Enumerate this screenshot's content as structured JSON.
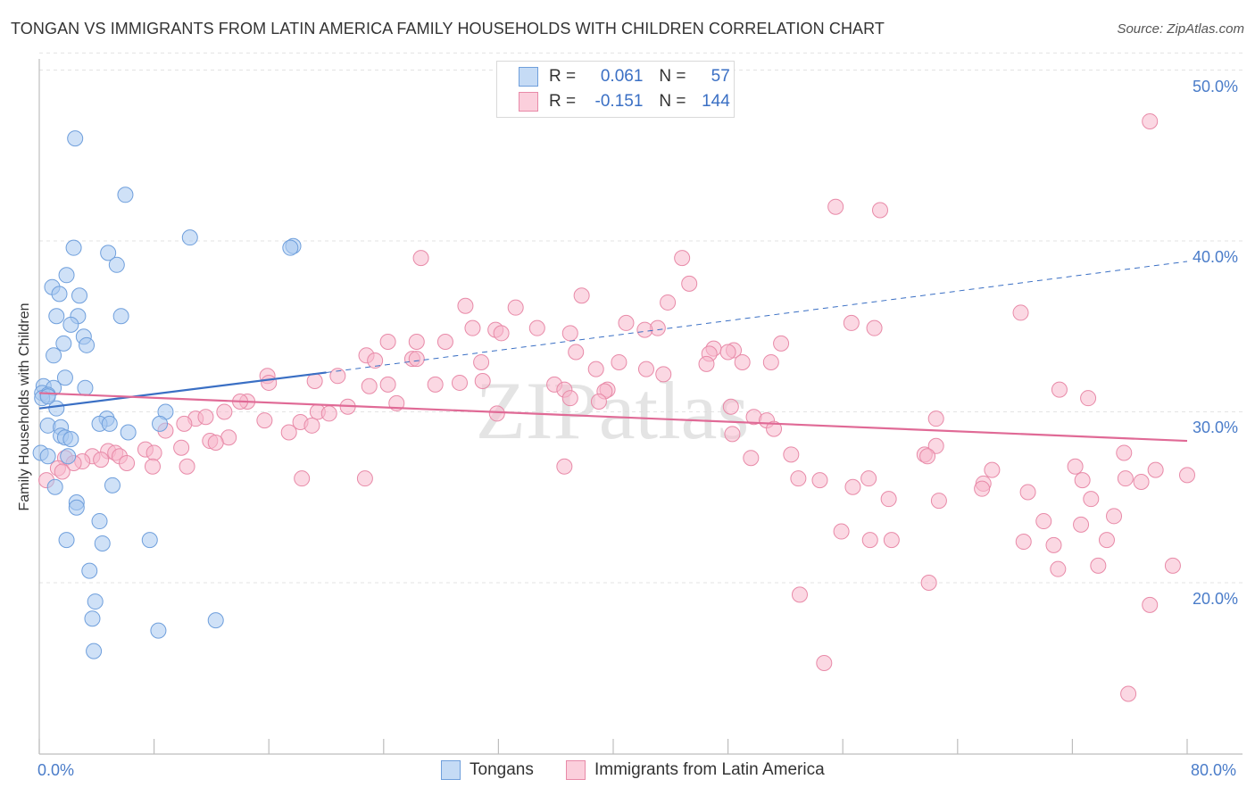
{
  "title": "TONGAN VS IMMIGRANTS FROM LATIN AMERICA FAMILY HOUSEHOLDS WITH CHILDREN CORRELATION CHART",
  "source": "Source: ZipAtlas.com",
  "watermark": "ZIPatlas",
  "legend": {
    "rows": [
      {
        "r_label": "R =",
        "r_value": "0.061",
        "n_label": "N =",
        "n_value": "57",
        "color": "#a8c8f0",
        "border": "#6f9fdc"
      },
      {
        "r_label": "R =",
        "r_value": "-0.151",
        "n_label": "N =",
        "n_value": "144",
        "color": "#f8b8cc",
        "border": "#e88aa8"
      }
    ]
  },
  "bottom_legend": [
    "Tongans",
    "Immigrants from Latin America"
  ],
  "axis_labels": {
    "y": "Family Households with Children",
    "x_min": "0.0%",
    "x_max": "80.0%",
    "y_ticks": [
      "50.0%",
      "40.0%",
      "30.0%",
      "20.0%"
    ]
  },
  "chart_data": {
    "type": "scatter",
    "title": "TONGAN VS IMMIGRANTS FROM LATIN AMERICA FAMILY HOUSEHOLDS WITH CHILDREN CORRELATION CHART",
    "xlabel": "",
    "ylabel": "Family Households with Children",
    "xlim": [
      0,
      80
    ],
    "ylim": [
      10,
      52
    ],
    "y_ticks": [
      20,
      30,
      40,
      50
    ],
    "x_ticks": [
      0,
      80
    ],
    "grid": true,
    "legend_position": "top-center",
    "colors": {
      "tongans": "#6f9fdc",
      "latin": "#e88aa8",
      "tongans_fill": "#a8c8f0",
      "latin_fill": "#f8b8cc",
      "tongans_line": "#3a6fc4",
      "latin_line": "#e06a96"
    },
    "series": [
      {
        "name": "Tongans",
        "r": 0.061,
        "n": 57,
        "trend": {
          "x0": 0,
          "y0": 30.2,
          "x1": 20,
          "y1": 32.3,
          "dash_to_x": 80,
          "dash_to_y": 38.8
        },
        "points": [
          [
            2.5,
            46.0
          ],
          [
            6.0,
            42.7
          ],
          [
            10.5,
            40.2
          ],
          [
            17.7,
            39.7
          ],
          [
            17.5,
            39.6
          ],
          [
            2.4,
            39.6
          ],
          [
            4.8,
            39.3
          ],
          [
            5.4,
            38.6
          ],
          [
            1.9,
            38.0
          ],
          [
            0.9,
            37.3
          ],
          [
            1.4,
            36.9
          ],
          [
            2.8,
            36.8
          ],
          [
            1.2,
            35.6
          ],
          [
            2.7,
            35.6
          ],
          [
            5.7,
            35.6
          ],
          [
            2.2,
            35.1
          ],
          [
            3.1,
            34.4
          ],
          [
            1.7,
            34.0
          ],
          [
            3.3,
            33.9
          ],
          [
            1.0,
            33.3
          ],
          [
            1.8,
            32.0
          ],
          [
            0.3,
            31.5
          ],
          [
            1.0,
            31.4
          ],
          [
            3.2,
            31.4
          ],
          [
            0.2,
            31.1
          ],
          [
            0.6,
            31.0
          ],
          [
            0.2,
            30.8
          ],
          [
            1.2,
            30.2
          ],
          [
            4.7,
            29.6
          ],
          [
            8.8,
            30.0
          ],
          [
            4.2,
            29.3
          ],
          [
            4.9,
            29.3
          ],
          [
            8.4,
            29.3
          ],
          [
            0.6,
            29.2
          ],
          [
            1.5,
            29.1
          ],
          [
            1.5,
            28.6
          ],
          [
            6.2,
            28.8
          ],
          [
            1.8,
            28.5
          ],
          [
            2.2,
            28.4
          ],
          [
            0.1,
            27.6
          ],
          [
            0.6,
            27.4
          ],
          [
            2.0,
            27.4
          ],
          [
            5.1,
            25.7
          ],
          [
            1.1,
            25.6
          ],
          [
            2.6,
            24.7
          ],
          [
            2.6,
            24.4
          ],
          [
            4.2,
            23.6
          ],
          [
            1.9,
            22.5
          ],
          [
            4.4,
            22.3
          ],
          [
            7.7,
            22.5
          ],
          [
            3.5,
            20.7
          ],
          [
            3.9,
            18.9
          ],
          [
            3.7,
            17.9
          ],
          [
            12.3,
            17.8
          ],
          [
            8.3,
            17.2
          ],
          [
            3.8,
            16.0
          ],
          [
            0.6,
            30.9
          ]
        ]
      },
      {
        "name": "Immigrants from Latin America",
        "r": -0.151,
        "n": 144,
        "trend": {
          "x0": 0,
          "y0": 31.1,
          "x1": 80,
          "y1": 28.3
        },
        "points": [
          [
            77.4,
            47.0
          ],
          [
            55.5,
            42.0
          ],
          [
            58.6,
            41.8
          ],
          [
            26.6,
            39.0
          ],
          [
            44.8,
            39.0
          ],
          [
            45.3,
            37.5
          ],
          [
            37.8,
            36.8
          ],
          [
            43.8,
            36.4
          ],
          [
            29.7,
            36.2
          ],
          [
            33.2,
            36.1
          ],
          [
            68.4,
            35.8
          ],
          [
            56.6,
            35.2
          ],
          [
            40.9,
            35.2
          ],
          [
            43.1,
            34.9
          ],
          [
            58.2,
            34.9
          ],
          [
            30.2,
            34.9
          ],
          [
            34.7,
            34.9
          ],
          [
            31.8,
            34.8
          ],
          [
            32.2,
            34.6
          ],
          [
            37.0,
            34.6
          ],
          [
            42.2,
            34.8
          ],
          [
            24.3,
            34.1
          ],
          [
            26.3,
            34.1
          ],
          [
            28.3,
            34.1
          ],
          [
            51.7,
            34.0
          ],
          [
            47.0,
            33.7
          ],
          [
            48.4,
            33.6
          ],
          [
            48.0,
            33.5
          ],
          [
            46.7,
            33.4
          ],
          [
            37.4,
            33.5
          ],
          [
            22.8,
            33.3
          ],
          [
            26.0,
            33.1
          ],
          [
            26.3,
            33.1
          ],
          [
            30.8,
            32.9
          ],
          [
            23.4,
            33.0
          ],
          [
            49.0,
            32.9
          ],
          [
            51.0,
            32.9
          ],
          [
            40.4,
            32.9
          ],
          [
            46.5,
            32.8
          ],
          [
            38.8,
            32.5
          ],
          [
            42.3,
            32.5
          ],
          [
            43.5,
            32.2
          ],
          [
            15.9,
            32.1
          ],
          [
            20.8,
            32.1
          ],
          [
            19.2,
            31.8
          ],
          [
            16.0,
            31.7
          ],
          [
            30.9,
            31.8
          ],
          [
            29.3,
            31.7
          ],
          [
            27.6,
            31.6
          ],
          [
            24.3,
            31.6
          ],
          [
            23.0,
            31.5
          ],
          [
            35.9,
            31.6
          ],
          [
            36.6,
            31.3
          ],
          [
            39.6,
            31.3
          ],
          [
            39.4,
            31.2
          ],
          [
            37.0,
            30.8
          ],
          [
            39.0,
            30.6
          ],
          [
            71.1,
            31.3
          ],
          [
            14.5,
            30.6
          ],
          [
            14.0,
            30.6
          ],
          [
            24.9,
            30.5
          ],
          [
            21.5,
            30.3
          ],
          [
            73.1,
            30.8
          ],
          [
            48.2,
            30.3
          ],
          [
            12.9,
            30.0
          ],
          [
            19.4,
            30.0
          ],
          [
            20.2,
            29.9
          ],
          [
            31.9,
            29.9
          ],
          [
            10.9,
            29.6
          ],
          [
            11.6,
            29.7
          ],
          [
            15.7,
            29.5
          ],
          [
            18.2,
            29.4
          ],
          [
            19.0,
            29.2
          ],
          [
            49.8,
            29.7
          ],
          [
            50.7,
            29.5
          ],
          [
            62.5,
            29.6
          ],
          [
            10.1,
            29.3
          ],
          [
            8.8,
            28.9
          ],
          [
            17.4,
            28.8
          ],
          [
            51.2,
            29.0
          ],
          [
            48.3,
            28.7
          ],
          [
            13.2,
            28.5
          ],
          [
            11.9,
            28.3
          ],
          [
            12.3,
            28.2
          ],
          [
            62.5,
            28.0
          ],
          [
            9.9,
            27.9
          ],
          [
            7.4,
            27.8
          ],
          [
            8.0,
            27.6
          ],
          [
            4.8,
            27.7
          ],
          [
            5.3,
            27.6
          ],
          [
            1.8,
            27.3
          ],
          [
            3.7,
            27.4
          ],
          [
            5.6,
            27.4
          ],
          [
            4.3,
            27.2
          ],
          [
            3.0,
            27.1
          ],
          [
            2.4,
            27.0
          ],
          [
            6.1,
            27.0
          ],
          [
            7.9,
            26.8
          ],
          [
            10.3,
            26.8
          ],
          [
            1.3,
            26.7
          ],
          [
            1.6,
            26.5
          ],
          [
            0.5,
            26.0
          ],
          [
            61.7,
            27.5
          ],
          [
            61.9,
            27.4
          ],
          [
            65.8,
            25.8
          ],
          [
            52.4,
            27.5
          ],
          [
            49.6,
            27.3
          ],
          [
            36.6,
            26.8
          ],
          [
            75.6,
            27.6
          ],
          [
            72.2,
            26.8
          ],
          [
            77.8,
            26.6
          ],
          [
            68.9,
            25.3
          ],
          [
            76.8,
            25.9
          ],
          [
            80.0,
            26.3
          ],
          [
            75.7,
            26.1
          ],
          [
            73.3,
            24.9
          ],
          [
            59.2,
            24.9
          ],
          [
            52.9,
            26.1
          ],
          [
            56.7,
            25.6
          ],
          [
            54.4,
            26.0
          ],
          [
            57.8,
            26.1
          ],
          [
            72.7,
            26.0
          ],
          [
            66.4,
            26.6
          ],
          [
            65.7,
            25.5
          ],
          [
            62.7,
            24.8
          ],
          [
            22.7,
            26.1
          ],
          [
            18.3,
            26.1
          ],
          [
            74.9,
            23.9
          ],
          [
            74.4,
            22.5
          ],
          [
            70.0,
            23.6
          ],
          [
            72.6,
            23.4
          ],
          [
            55.9,
            23.0
          ],
          [
            57.9,
            22.5
          ],
          [
            59.4,
            22.5
          ],
          [
            68.6,
            22.4
          ],
          [
            70.7,
            22.2
          ],
          [
            71.0,
            20.8
          ],
          [
            73.8,
            21.0
          ],
          [
            79.0,
            21.0
          ],
          [
            62.0,
            20.0
          ],
          [
            53.0,
            19.3
          ],
          [
            77.4,
            18.7
          ],
          [
            54.7,
            15.3
          ],
          [
            75.9,
            13.5
          ]
        ]
      }
    ]
  }
}
